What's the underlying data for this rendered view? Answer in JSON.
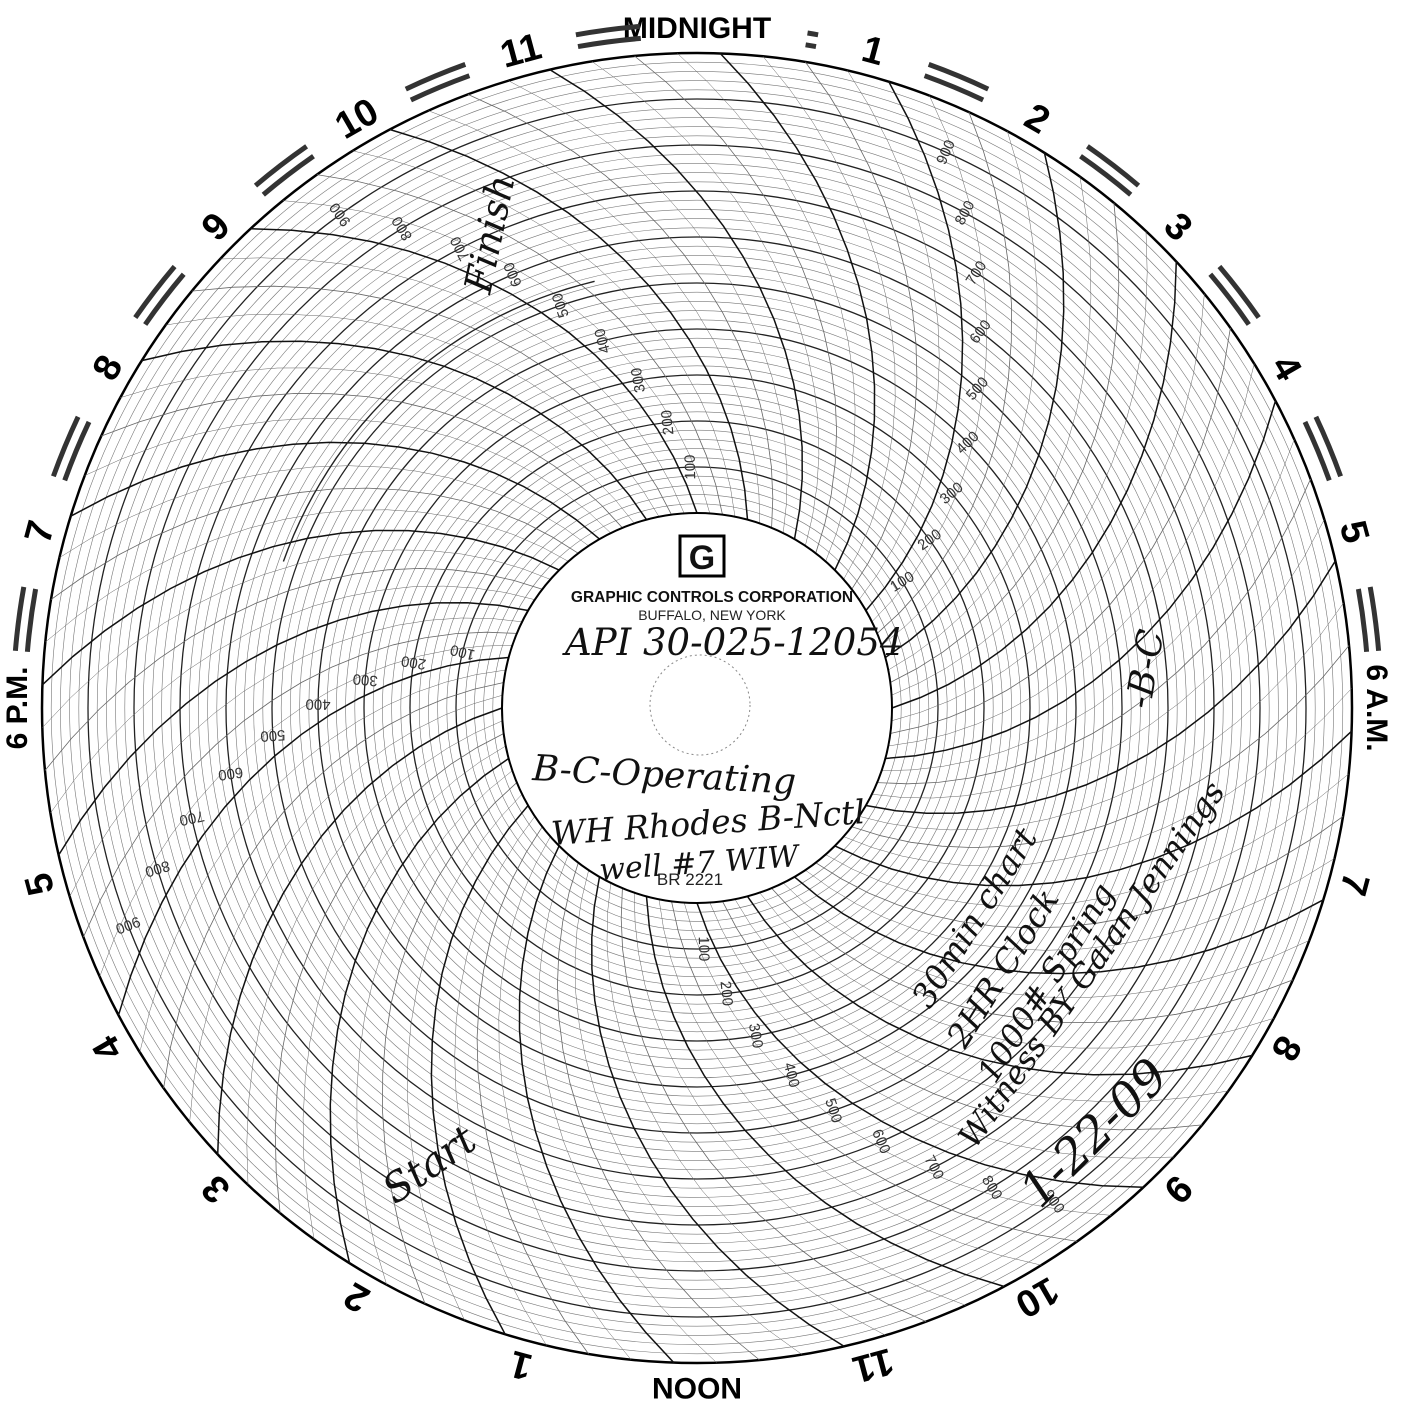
{
  "chart_data": {
    "type": "circular-chart",
    "manufacturer": "GRAPHIC CONTROLS CORPORATION",
    "location": "BUFFALO, NEW YORK",
    "chart_number": "BR 2221",
    "logo_mark": "G",
    "range": [
      0,
      1000
    ],
    "scale_labels": [
      "100",
      "200",
      "300",
      "400",
      "500",
      "600",
      "700",
      "800",
      "900"
    ],
    "hours_per_rev": 24,
    "hour_labels": [
      {
        "hour": 0,
        "label": "MIDNIGHT"
      },
      {
        "hour": 1,
        "label": "1"
      },
      {
        "hour": 2,
        "label": "2"
      },
      {
        "hour": 3,
        "label": "3"
      },
      {
        "hour": 4,
        "label": "4"
      },
      {
        "hour": 5,
        "label": "5"
      },
      {
        "hour": 6,
        "label": "6 A.M."
      },
      {
        "hour": 7,
        "label": "7"
      },
      {
        "hour": 8,
        "label": "8"
      },
      {
        "hour": 9,
        "label": "9"
      },
      {
        "hour": 10,
        "label": "10"
      },
      {
        "hour": 11,
        "label": "11"
      },
      {
        "hour": 12,
        "label": "NOON"
      },
      {
        "hour": 13,
        "label": "1"
      },
      {
        "hour": 14,
        "label": "2"
      },
      {
        "hour": 15,
        "label": "3"
      },
      {
        "hour": 16,
        "label": "4"
      },
      {
        "hour": 17,
        "label": "5"
      },
      {
        "hour": 18,
        "label": "6 P.M."
      },
      {
        "hour": 19,
        "label": "7"
      },
      {
        "hour": 20,
        "label": "8"
      },
      {
        "hour": 21,
        "label": "9"
      },
      {
        "hour": 22,
        "label": "10"
      },
      {
        "hour": 23,
        "label": "11"
      }
    ],
    "handwriting": {
      "api": "API 30-025-12054",
      "operator": "B-C-Operating",
      "lease": "WH Rhodes B-Nctl",
      "well": "well #7 WIW",
      "initials": "-B-C",
      "start": "Start",
      "finish": "Finish",
      "note1": "30min chart",
      "note2": "2HR Clock",
      "note3": "1000# Spring",
      "note4": "Witness BY Galan Jennings",
      "date": "1-22-09"
    }
  }
}
